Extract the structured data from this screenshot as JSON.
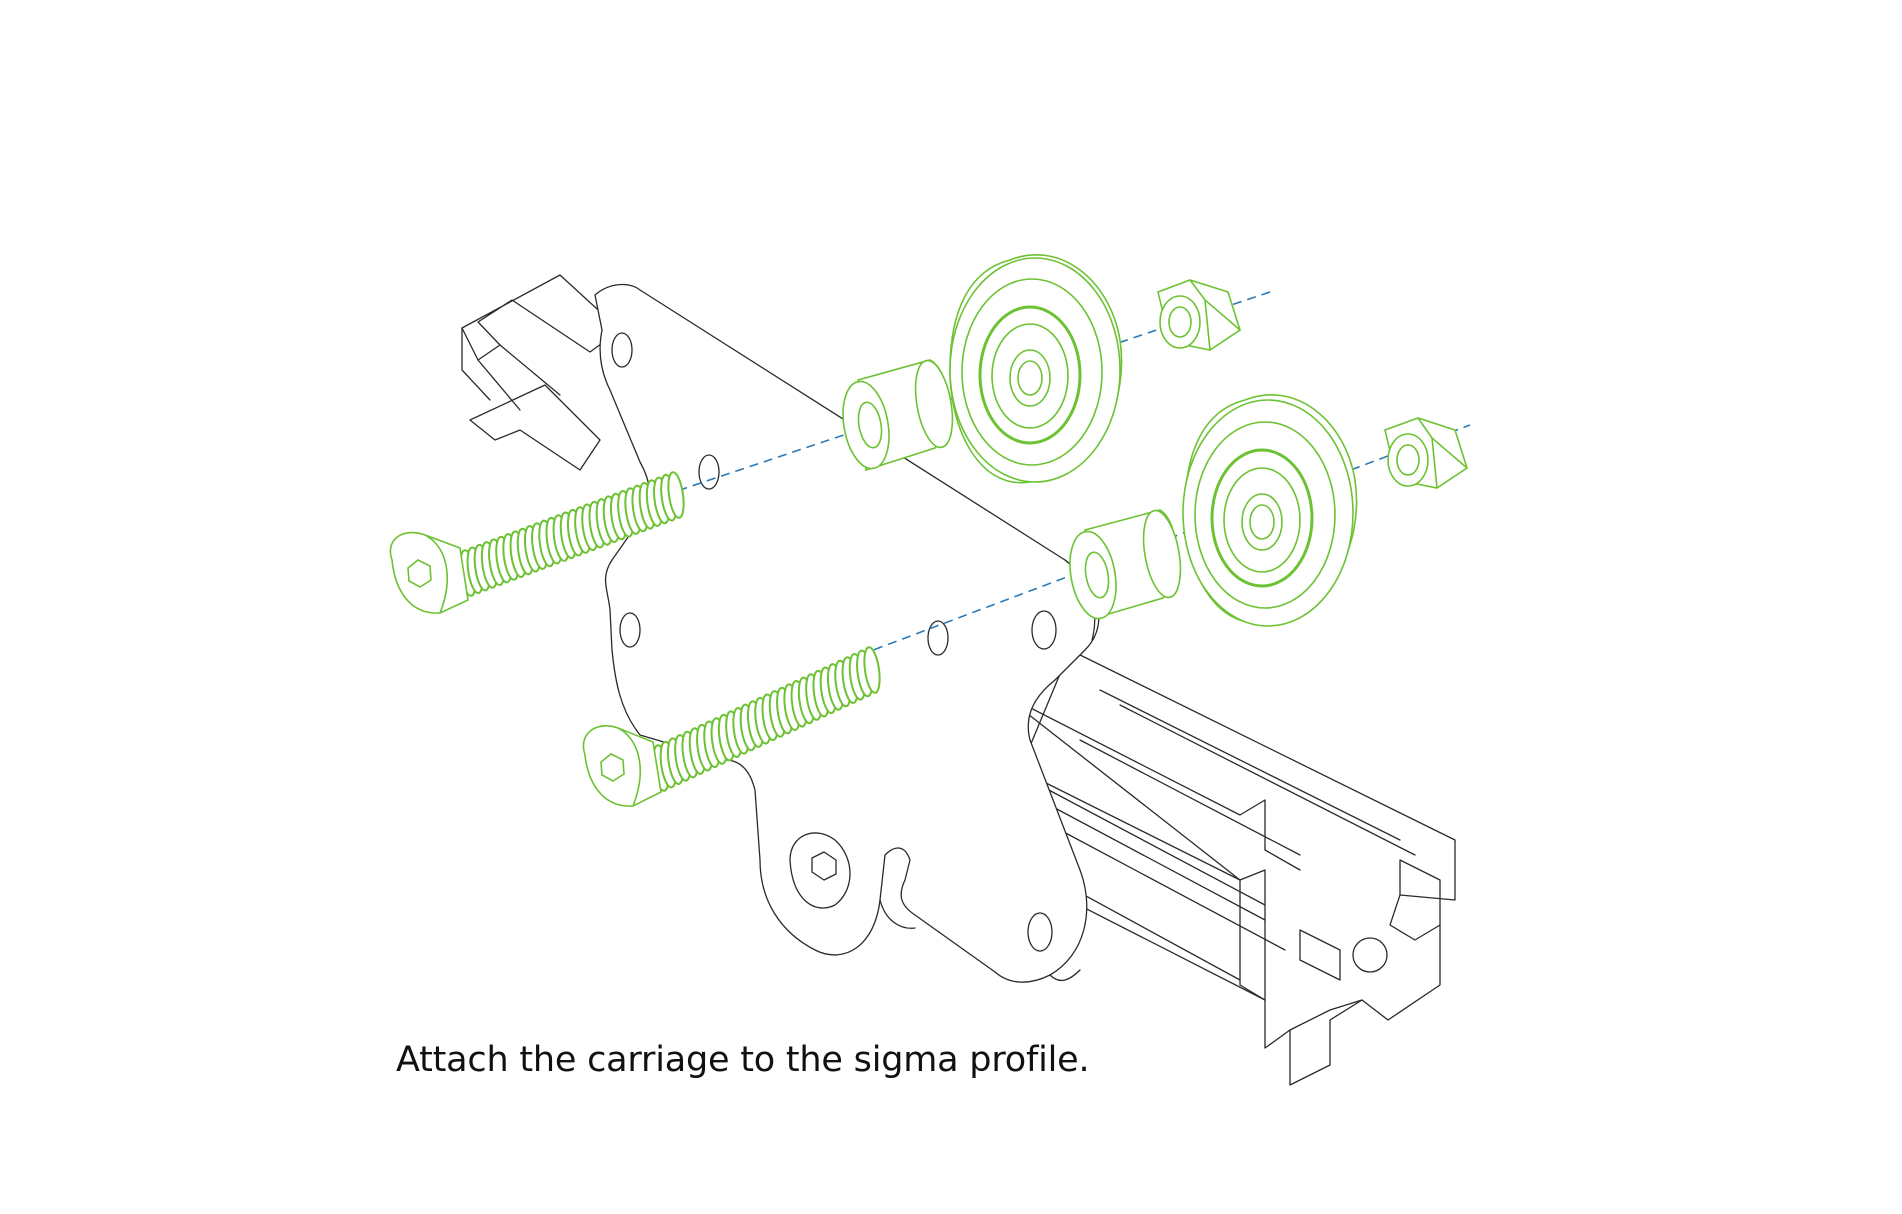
{
  "caption": "Attach the carriage to the sigma profile.",
  "colors": {
    "hardware_highlight": "#6cc232",
    "outline": "#2a2a2a",
    "assembly_axis": "#2a7ab8",
    "background": "#ffffff"
  },
  "parts": [
    "sigma-profile",
    "carriage-plate",
    "button-head-bolt",
    "spacer",
    "v-wheel",
    "lock-nut"
  ]
}
